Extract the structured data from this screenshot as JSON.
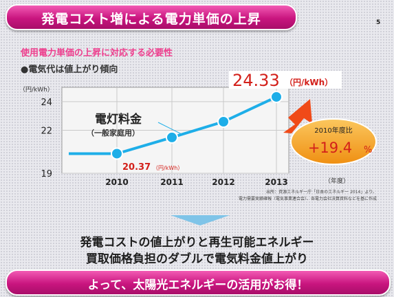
{
  "header": {
    "title": "発電コスト増による電力単価の上昇",
    "page_number": "5"
  },
  "subtitle": "使用電力単価の上昇に対応する必要性",
  "bullet": "●電気代は値上がり傾向",
  "colors": {
    "banner": "#d61f8c",
    "line": "#1eaee8",
    "arrow": "#f04a18",
    "badge": "#f7a51e",
    "value_text": "#d3201a"
  },
  "chart_data": {
    "type": "line",
    "x": [
      "2010",
      "2011",
      "2012",
      "2013"
    ],
    "series": [
      {
        "name": "電灯料金",
        "values": [
          20.37,
          21.5,
          22.6,
          24.33
        ]
      }
    ],
    "ylim": [
      19,
      25
    ],
    "yticks": [
      "19",
      "22",
      "24"
    ],
    "ylabel": "（円/kWh）",
    "xlabel": "（年度）",
    "series_label": "電灯料金",
    "series_sublabel": "（一般家庭用）",
    "annotation_start": {
      "value": "20.37",
      "unit": "（円/kWh）"
    },
    "annotation_end": {
      "value": "24.33",
      "unit": "（円/kWh）"
    },
    "badge": {
      "label": "2010年度比",
      "value": "+19.4",
      "unit": "%"
    },
    "source_lines": [
      "出所：資源エネルギー庁「日本のエネルギー 2014」より、",
      "電力需要実績確報（電気事業連合会）、各電力会社決算資料などを基に作成"
    ],
    "grid": true
  },
  "summary": {
    "line1": "発電コストの値上がりと再生可能エネルギー",
    "line2": "買取価格負担のダブルで電気料金値上がり"
  },
  "footer": {
    "conclusion": "よって、太陽光エネルギーの活用がお得！"
  }
}
